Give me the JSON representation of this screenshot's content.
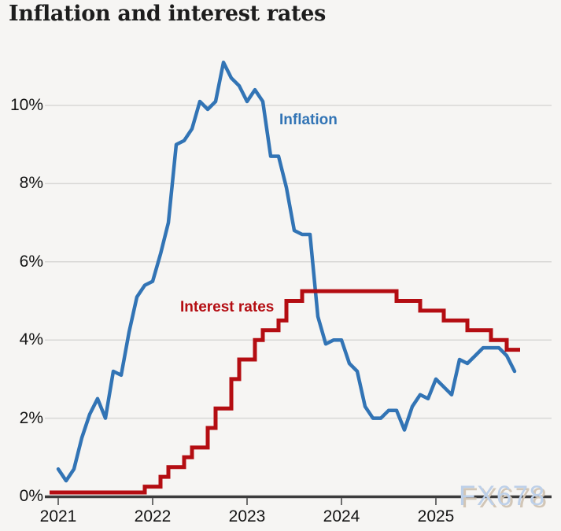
{
  "chart_data": {
    "type": "line",
    "title": "Inflation and interest rates",
    "x_start": "2021-01",
    "x_frequency": "monthly",
    "grid": "horizontal",
    "ylim": [
      0,
      11.6
    ],
    "y_ticks": [
      {
        "label": "0%",
        "value": 0
      },
      {
        "label": "2%",
        "value": 2
      },
      {
        "label": "4%",
        "value": 4
      },
      {
        "label": "6%",
        "value": 6
      },
      {
        "label": "8%",
        "value": 8
      },
      {
        "label": "10%",
        "value": 10
      }
    ],
    "x_ticks": [
      {
        "label": "2021",
        "month": 0
      },
      {
        "label": "2022",
        "month": 12
      },
      {
        "label": "2023",
        "month": 24
      },
      {
        "label": "2024",
        "month": 36
      },
      {
        "label": "2025",
        "month": 48
      }
    ],
    "series": [
      {
        "name": "Inflation",
        "style": "line",
        "color": "#3274b5",
        "values": [
          0.7,
          0.4,
          0.7,
          1.5,
          2.1,
          2.5,
          2.0,
          3.2,
          3.1,
          4.2,
          5.1,
          5.4,
          5.5,
          6.2,
          7.0,
          9.0,
          9.1,
          9.4,
          10.1,
          9.9,
          10.1,
          11.1,
          10.7,
          10.5,
          10.1,
          10.4,
          10.1,
          8.7,
          8.7,
          7.9,
          6.8,
          6.7,
          6.7,
          4.6,
          3.9,
          4.0,
          4.0,
          3.4,
          3.2,
          2.3,
          2.0,
          2.0,
          2.2,
          2.2,
          1.7,
          2.3,
          2.6,
          2.5,
          3.0,
          2.8,
          2.6,
          3.5,
          3.4,
          3.6,
          3.8,
          3.8,
          3.8,
          3.6,
          3.2
        ]
      },
      {
        "name": "Interest rates",
        "style": "step",
        "color": "#b40d12",
        "values": [
          0.1,
          0.1,
          0.1,
          0.1,
          0.1,
          0.1,
          0.1,
          0.1,
          0.1,
          0.1,
          0.1,
          0.25,
          0.25,
          0.5,
          0.75,
          0.75,
          1.0,
          1.25,
          1.25,
          1.75,
          2.25,
          2.25,
          3.0,
          3.5,
          3.5,
          4.0,
          4.25,
          4.25,
          4.5,
          5.0,
          5.0,
          5.25,
          5.25,
          5.25,
          5.25,
          5.25,
          5.25,
          5.25,
          5.25,
          5.25,
          5.25,
          5.25,
          5.25,
          5.0,
          5.0,
          5.0,
          4.75,
          4.75,
          4.75,
          4.5,
          4.5,
          4.5,
          4.25,
          4.25,
          4.25,
          4.0,
          4.0,
          3.75,
          3.75,
          3.75
        ]
      }
    ],
    "colors": {
      "background": "#f6f5f3",
      "gridline": "#d8d8d6",
      "axis": "#3c3c3c",
      "tick": "#6e6e6e",
      "label_text": "#141414"
    },
    "watermark": {
      "text": "FX678",
      "color": "#bdd0e9"
    }
  }
}
